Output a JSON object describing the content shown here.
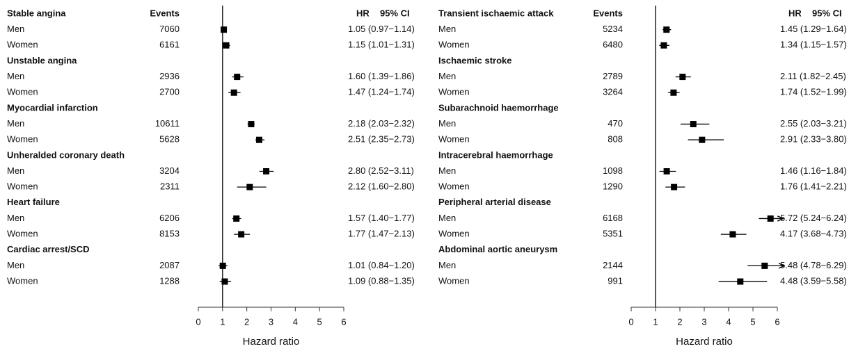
{
  "chart_data": [
    {
      "type": "forest",
      "events_header": "Events",
      "hr_header": "HR",
      "ci_header": "95% CI",
      "x_label": "Hazard ratio",
      "xlim": [
        0,
        6
      ],
      "xticks": [
        0,
        1,
        2,
        3,
        4,
        5,
        6
      ],
      "reference_line": 1,
      "color": "#000000",
      "groups": [
        {
          "name": "Stable angina",
          "rows": [
            {
              "label": "Men",
              "events": 7060,
              "hr": 1.05,
              "ci": [
                0.97,
                1.14
              ],
              "hr_label": "1.05 (0.97−1.14)"
            },
            {
              "label": "Women",
              "events": 6161,
              "hr": 1.15,
              "ci": [
                1.01,
                1.31
              ],
              "hr_label": "1.15 (1.01−1.31)"
            }
          ]
        },
        {
          "name": "Unstable angina",
          "rows": [
            {
              "label": "Men",
              "events": 2936,
              "hr": 1.6,
              "ci": [
                1.39,
                1.86
              ],
              "hr_label": "1.60 (1.39−1.86)"
            },
            {
              "label": "Women",
              "events": 2700,
              "hr": 1.47,
              "ci": [
                1.24,
                1.74
              ],
              "hr_label": "1.47 (1.24−1.74)"
            }
          ]
        },
        {
          "name": "Myocardial infarction",
          "rows": [
            {
              "label": "Men",
              "events": 10611,
              "hr": 2.18,
              "ci": [
                2.03,
                2.32
              ],
              "hr_label": "2.18 (2.03−2.32)"
            },
            {
              "label": "Women",
              "events": 5628,
              "hr": 2.51,
              "ci": [
                2.35,
                2.73
              ],
              "hr_label": "2.51 (2.35−2.73)"
            }
          ]
        },
        {
          "name": "Unheralded coronary death",
          "rows": [
            {
              "label": "Men",
              "events": 3204,
              "hr": 2.8,
              "ci": [
                2.52,
                3.11
              ],
              "hr_label": "2.80 (2.52−3.11)"
            },
            {
              "label": "Women",
              "events": 2311,
              "hr": 2.12,
              "ci": [
                1.6,
                2.8
              ],
              "hr_label": "2.12 (1.60−2.80)"
            }
          ]
        },
        {
          "name": "Heart failure",
          "rows": [
            {
              "label": "Men",
              "events": 6206,
              "hr": 1.57,
              "ci": [
                1.4,
                1.77
              ],
              "hr_label": "1.57 (1.40−1.77)"
            },
            {
              "label": "Women",
              "events": 8153,
              "hr": 1.77,
              "ci": [
                1.47,
                2.13
              ],
              "hr_label": "1.77 (1.47−2.13)"
            }
          ]
        },
        {
          "name": "Cardiac arrest/SCD",
          "rows": [
            {
              "label": "Men",
              "events": 2087,
              "hr": 1.01,
              "ci": [
                0.84,
                1.2
              ],
              "hr_label": "1.01 (0.84−1.20)"
            },
            {
              "label": "Women",
              "events": 1288,
              "hr": 1.09,
              "ci": [
                0.88,
                1.35
              ],
              "hr_label": "1.09 (0.88−1.35)"
            }
          ]
        }
      ]
    },
    {
      "type": "forest",
      "events_header": "Events",
      "hr_header": "HR",
      "ci_header": "95% CI",
      "x_label": "Hazard ratio",
      "xlim": [
        0,
        6
      ],
      "xticks": [
        0,
        1,
        2,
        3,
        4,
        5,
        6
      ],
      "reference_line": 1,
      "color": "#000000",
      "groups": [
        {
          "name": "Transient ischaemic attack",
          "rows": [
            {
              "label": "Men",
              "events": 5234,
              "hr": 1.45,
              "ci": [
                1.29,
                1.64
              ],
              "hr_label": "1.45 (1.29−1.64)"
            },
            {
              "label": "Women",
              "events": 6480,
              "hr": 1.34,
              "ci": [
                1.15,
                1.57
              ],
              "hr_label": "1.34 (1.15−1.57)"
            }
          ]
        },
        {
          "name": "Ischaemic stroke",
          "rows": [
            {
              "label": "Men",
              "events": 2789,
              "hr": 2.11,
              "ci": [
                1.82,
                2.45
              ],
              "hr_label": "2.11 (1.82−2.45)"
            },
            {
              "label": "Women",
              "events": 3264,
              "hr": 1.74,
              "ci": [
                1.52,
                1.99
              ],
              "hr_label": "1.74 (1.52−1.99)"
            }
          ]
        },
        {
          "name": "Subarachnoid haemorrhage",
          "rows": [
            {
              "label": "Men",
              "events": 470,
              "hr": 2.55,
              "ci": [
                2.03,
                3.21
              ],
              "hr_label": "2.55 (2.03−3.21)"
            },
            {
              "label": "Women",
              "events": 808,
              "hr": 2.91,
              "ci": [
                2.33,
                3.8
              ],
              "hr_label": "2.91 (2.33−3.80)"
            }
          ]
        },
        {
          "name": "Intracerebral haemorrhage",
          "rows": [
            {
              "label": "Men",
              "events": 1098,
              "hr": 1.46,
              "ci": [
                1.16,
                1.84
              ],
              "hr_label": "1.46 (1.16−1.84)"
            },
            {
              "label": "Women",
              "events": 1290,
              "hr": 1.76,
              "ci": [
                1.41,
                2.21
              ],
              "hr_label": "1.76 (1.41−2.21)"
            }
          ]
        },
        {
          "name": "Peripheral arterial disease",
          "rows": [
            {
              "label": "Men",
              "events": 6168,
              "hr": 5.72,
              "ci": [
                5.24,
                6.24
              ],
              "hr_label": "5.72 (5.24−6.24)"
            },
            {
              "label": "Women",
              "events": 5351,
              "hr": 4.17,
              "ci": [
                3.68,
                4.73
              ],
              "hr_label": "4.17 (3.68−4.73)"
            }
          ]
        },
        {
          "name": "Abdominal aortic aneurysm",
          "rows": [
            {
              "label": "Men",
              "events": 2144,
              "hr": 5.48,
              "ci": [
                4.78,
                6.29
              ],
              "hr_label": "5.48 (4.78−6.29)"
            },
            {
              "label": "Women",
              "events": 991,
              "hr": 4.48,
              "ci": [
                3.59,
                5.58
              ],
              "hr_label": "4.48 (3.59−5.58)"
            }
          ]
        }
      ]
    }
  ]
}
